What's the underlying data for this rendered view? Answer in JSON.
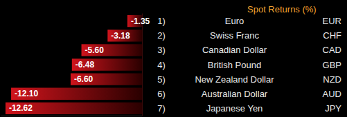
{
  "chart_data": {
    "type": "bar",
    "orientation": "horizontal",
    "title": "Spot Returns (%)",
    "categories": [
      "Euro",
      "Swiss Franc",
      "Canadian Dollar",
      "British Pound",
      "New Zealand Dollar",
      "Australian Dollar",
      "Japanese Yen"
    ],
    "numbers": [
      "1)",
      "2)",
      "3)",
      "4)",
      "5)",
      "6)",
      "7)"
    ],
    "codes": [
      "EUR",
      "CHF",
      "CAD",
      "GBP",
      "NZD",
      "AUD",
      "JPY"
    ],
    "values": [
      -1.35,
      -3.18,
      -5.6,
      -6.48,
      -6.6,
      -12.1,
      -12.62
    ],
    "value_labels": [
      "-1.35",
      "-3.18",
      "-5.60",
      "-6.48",
      "-6.60",
      "-12.10",
      "-12.62"
    ],
    "color": "#d0141c",
    "xlim": [
      -13,
      0
    ],
    "xticks": [],
    "data_labels": true,
    "tick_labels": "y",
    "grid": false
  }
}
